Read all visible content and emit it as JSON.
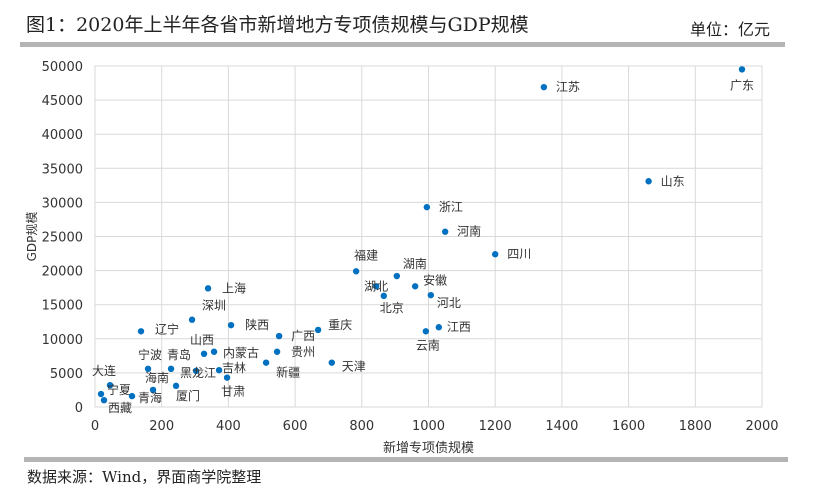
{
  "header": {
    "title": "图1：2020年上半年各省市新增地方专项债规模与GDP规模",
    "unit": "单位：亿元"
  },
  "footer": {
    "source": "数据来源：Wind，界面商学院整理"
  },
  "chart_data": {
    "type": "scatter",
    "xlabel": "新增专项债规模",
    "ylabel": "GDP规模",
    "xlim": [
      0,
      2000
    ],
    "ylim": [
      0,
      50000
    ],
    "xticks": [
      0,
      200,
      400,
      600,
      800,
      1000,
      1200,
      1400,
      1600,
      1800,
      2000
    ],
    "yticks": [
      0,
      5000,
      10000,
      15000,
      20000,
      25000,
      30000,
      35000,
      40000,
      45000,
      50000
    ],
    "grid": true,
    "color": "#0070c0",
    "points": [
      {
        "label": "广东",
        "x": 1940,
        "y": 49500
      },
      {
        "label": "江苏",
        "x": 1346,
        "y": 46900
      },
      {
        "label": "山东",
        "x": 1660,
        "y": 33100
      },
      {
        "label": "浙江",
        "x": 995,
        "y": 29300
      },
      {
        "label": "河南",
        "x": 1050,
        "y": 25700
      },
      {
        "label": "四川",
        "x": 1200,
        "y": 22400
      },
      {
        "label": "福建",
        "x": 783,
        "y": 19900
      },
      {
        "label": "湖南",
        "x": 905,
        "y": 19200
      },
      {
        "label": "安徽",
        "x": 960,
        "y": 17700
      },
      {
        "label": "湖北",
        "x": 843,
        "y": 17700
      },
      {
        "label": "北京",
        "x": 866,
        "y": 16300
      },
      {
        "label": "河北",
        "x": 1007,
        "y": 16400
      },
      {
        "label": "江西",
        "x": 1031,
        "y": 11700
      },
      {
        "label": "云南",
        "x": 992,
        "y": 11100
      },
      {
        "label": "上海",
        "x": 339,
        "y": 17400
      },
      {
        "label": "深圳",
        "x": 291,
        "y": 12800
      },
      {
        "label": "辽宁",
        "x": 138,
        "y": 11100
      },
      {
        "label": "陕西",
        "x": 408,
        "y": 12000
      },
      {
        "label": "重庆",
        "x": 669,
        "y": 11300
      },
      {
        "label": "广西",
        "x": 552,
        "y": 10400
      },
      {
        "label": "山西",
        "x": 327,
        "y": 7800
      },
      {
        "label": "内蒙古",
        "x": 357,
        "y": 8100
      },
      {
        "label": "贵州",
        "x": 546,
        "y": 8100
      },
      {
        "label": "新疆",
        "x": 513,
        "y": 6500
      },
      {
        "label": "天津",
        "x": 710,
        "y": 6500
      },
      {
        "label": "宁波",
        "x": 159,
        "y": 5600
      },
      {
        "label": "青岛",
        "x": 228,
        "y": 5600
      },
      {
        "label": "黑龙江",
        "x": 303,
        "y": 5300
      },
      {
        "label": "吉林",
        "x": 372,
        "y": 5400
      },
      {
        "label": "甘肃",
        "x": 396,
        "y": 4300
      },
      {
        "label": "大连",
        "x": 45,
        "y": 3200
      },
      {
        "label": "海南",
        "x": 174,
        "y": 2500
      },
      {
        "label": "厦门",
        "x": 243,
        "y": 3100
      },
      {
        "label": "宁夏",
        "x": 18,
        "y": 1900
      },
      {
        "label": "西藏",
        "x": 27,
        "y": 1000
      },
      {
        "label": "青海",
        "x": 111,
        "y": 1600
      }
    ]
  }
}
